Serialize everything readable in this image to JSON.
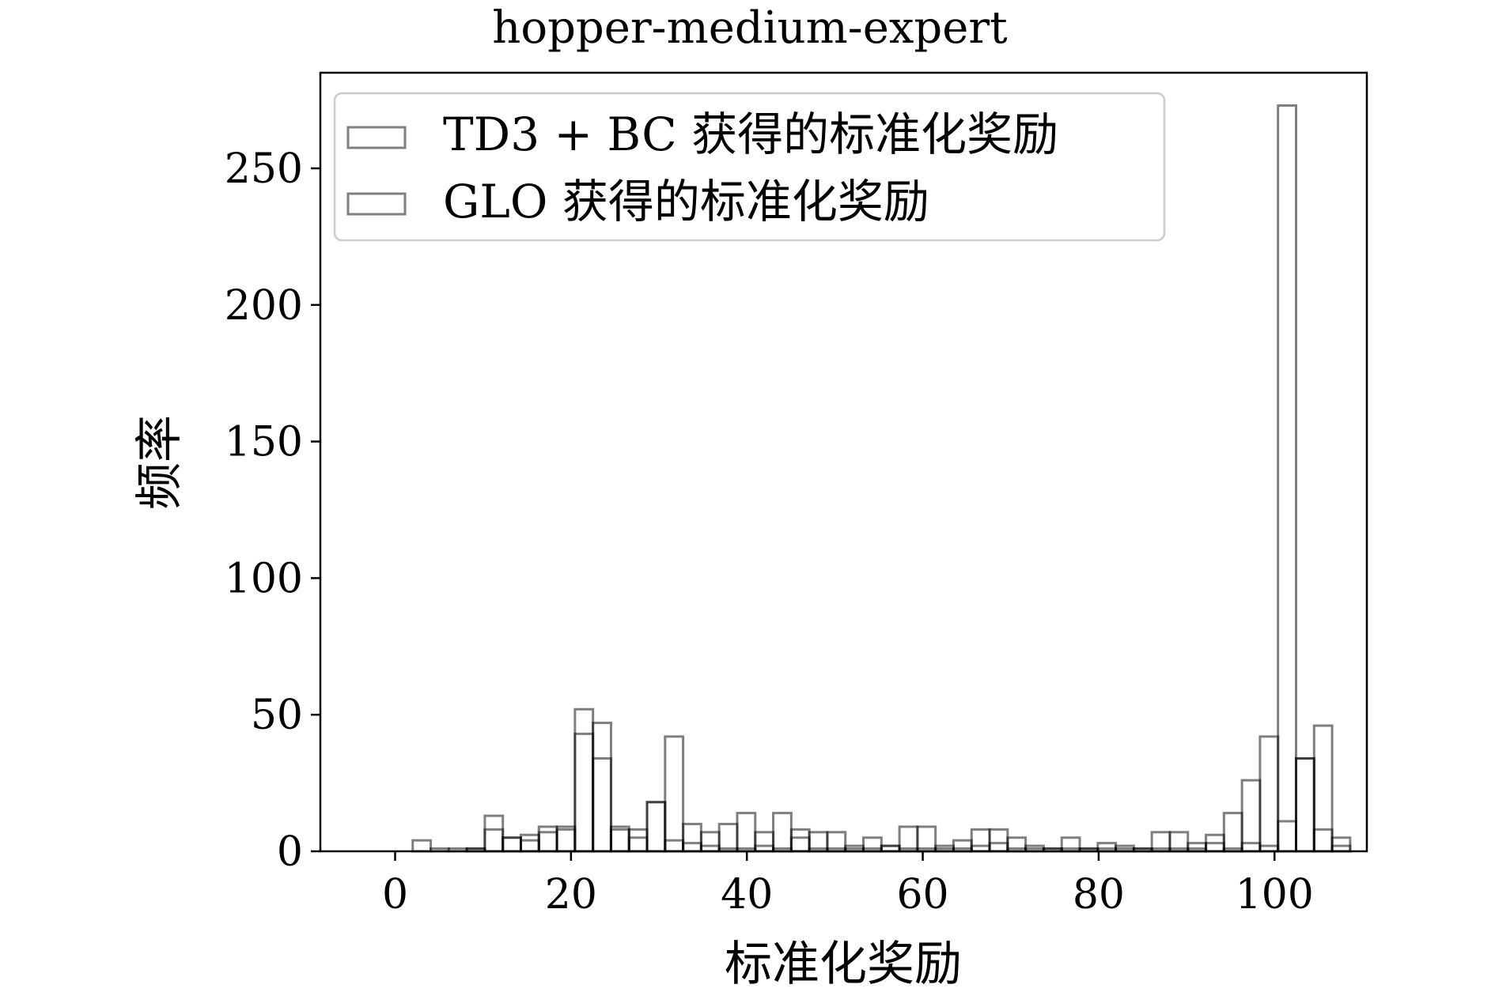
{
  "chart_data": {
    "type": "bar",
    "subtype": "overlaid-histogram",
    "title": "hopper-medium-expert",
    "xlabel": "标准化奖励",
    "ylabel": "频率",
    "xlim": [
      -8.5,
      110.5
    ],
    "ylim": [
      0,
      285
    ],
    "xticks": [
      0,
      20,
      40,
      60,
      80,
      100
    ],
    "yticks": [
      0,
      50,
      100,
      150,
      200,
      250
    ],
    "bin_start": 2.0,
    "bin_width": 2.05,
    "grid": false,
    "legend": "top-left",
    "series": [
      {
        "name": "TD3 + BC 获得的标准化奖励",
        "color": "#000000",
        "values": [
          0,
          0,
          0,
          1,
          8,
          5,
          4,
          7,
          8,
          43,
          34,
          8,
          5,
          18,
          4,
          3,
          2,
          1,
          1,
          2,
          1,
          5,
          1,
          1,
          1,
          1,
          2,
          1,
          1,
          2,
          1,
          2,
          3,
          1,
          1,
          1,
          1,
          1,
          1,
          2,
          1,
          1,
          1,
          1,
          3,
          1,
          3,
          2,
          11,
          34,
          8,
          2
        ]
      },
      {
        "name": "GLO 获得的标准化奖励",
        "color": "#000000",
        "values": [
          4,
          1,
          1,
          1,
          13,
          5,
          6,
          9,
          9,
          52,
          47,
          9,
          8,
          18,
          42,
          10,
          7,
          10,
          14,
          7,
          14,
          8,
          7,
          7,
          2,
          5,
          2,
          9,
          9,
          1,
          4,
          8,
          8,
          5,
          2,
          1,
          5,
          1,
          3,
          1,
          1,
          7,
          7,
          3,
          6,
          14,
          26,
          42,
          273,
          34,
          46,
          5
        ]
      }
    ]
  }
}
